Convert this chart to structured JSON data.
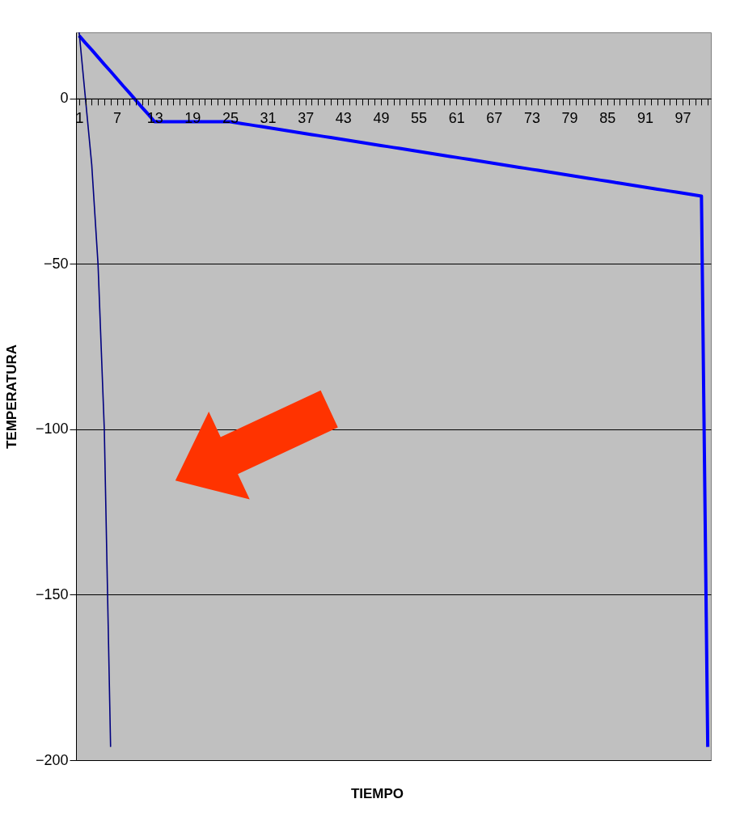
{
  "chart_data": {
    "type": "line",
    "xlabel": "TIEMPO",
    "ylabel": "TEMPERATURA",
    "categories": [
      "1",
      null,
      null,
      null,
      null,
      null,
      "7",
      null,
      null,
      null,
      null,
      null,
      "13",
      null,
      null,
      null,
      null,
      null,
      "19",
      null,
      null,
      null,
      null,
      null,
      "25",
      null,
      null,
      null,
      null,
      null,
      "31",
      null,
      null,
      null,
      null,
      null,
      "37",
      null,
      null,
      null,
      null,
      null,
      "43",
      null,
      null,
      null,
      null,
      null,
      "49",
      null,
      null,
      null,
      null,
      null,
      "55",
      null,
      null,
      null,
      null,
      null,
      "61",
      null,
      null,
      null,
      null,
      null,
      "67",
      null,
      null,
      null,
      null,
      null,
      "73",
      null,
      null,
      null,
      null,
      null,
      "79",
      null,
      null,
      null,
      null,
      null,
      "85",
      null,
      null,
      null,
      null,
      null,
      "91",
      null,
      null,
      null,
      null,
      null,
      "97",
      null,
      null,
      null,
      null
    ],
    "series": [
      {
        "color": "#0000ff",
        "values": [
          19,
          16.8,
          14.7,
          12.5,
          10.3,
          8.2,
          6,
          3.8,
          1.7,
          -0.5,
          -2.7,
          -4.8,
          -7,
          -7,
          -7,
          -7,
          -7,
          -7,
          -7,
          -7,
          -7,
          -7,
          -7,
          -7,
          -7,
          -7.3,
          -7.6,
          -7.9,
          -8.2,
          -8.5,
          -8.8,
          -9.1,
          -9.4,
          -9.7,
          -10,
          -10.3,
          -10.6,
          -10.9,
          -11.2,
          -11.5,
          -11.8,
          -12.1,
          -12.4,
          -12.7,
          -13,
          -13.3,
          -13.6,
          -13.9,
          -14.2,
          -14.5,
          -14.8,
          -15.1,
          -15.4,
          -15.7,
          -16,
          -16.3,
          -16.6,
          -16.9,
          -17.2,
          -17.5,
          -17.8,
          -18.1,
          -18.4,
          -18.7,
          -19,
          -19.3,
          -19.6,
          -19.9,
          -20.2,
          -20.5,
          -20.8,
          -21.1,
          -21.4,
          -21.7,
          -22,
          -22.3,
          -22.6,
          -22.9,
          -23.2,
          -23.5,
          -23.8,
          -24.1,
          -24.4,
          -24.7,
          -25,
          -25.3,
          -25.6,
          -25.9,
          -26.2,
          -26.5,
          -26.8,
          -27.1,
          -27.4,
          -27.7,
          -28,
          -28.3,
          -28.6,
          -28.9,
          -29.2,
          -29.5,
          -196
        ]
      },
      {
        "color": "#000080",
        "values": [
          20,
          0,
          -20,
          -50,
          -100,
          -196,
          null,
          null,
          null,
          null,
          null,
          null,
          null,
          null,
          null,
          null,
          null,
          null,
          null,
          null,
          null,
          null,
          null,
          null,
          null,
          null,
          null,
          null,
          null,
          null,
          null,
          null,
          null,
          null,
          null,
          null,
          null,
          null,
          null,
          null,
          null,
          null,
          null,
          null,
          null,
          null,
          null,
          null,
          null,
          null,
          null,
          null,
          null,
          null,
          null,
          null,
          null,
          null,
          null,
          null,
          null,
          null,
          null,
          null,
          null,
          null,
          null,
          null,
          null,
          null,
          null,
          null,
          null,
          null,
          null,
          null,
          null,
          null,
          null,
          null,
          null,
          null,
          null,
          null,
          null,
          null,
          null,
          null,
          null,
          null,
          null,
          null,
          null,
          null,
          null,
          null,
          null,
          null,
          null,
          null,
          null
        ]
      }
    ],
    "ylim": [
      -200,
      20
    ],
    "yticks": [
      -200,
      -150,
      -100,
      -50,
      0
    ],
    "grid": "y",
    "line_style": "solid",
    "marker": "none"
  }
}
